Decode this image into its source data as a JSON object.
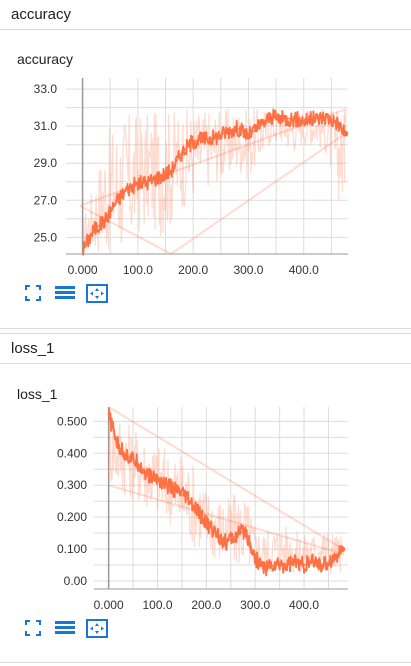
{
  "colors": {
    "series": "#ff7043",
    "grid": "#dddddd",
    "axis": "#999999",
    "icon": "#1976d2"
  },
  "icons": [
    "fit-domain-icon",
    "toggle-log-scale-icon",
    "reset-zoom-icon"
  ],
  "sections": [
    {
      "header": "accuracy"
    },
    {
      "header": "loss_1"
    }
  ],
  "chart_data": [
    {
      "type": "line",
      "title": "accuracy",
      "xlabel": "",
      "ylabel": "",
      "xlim": [
        -30,
        480
      ],
      "ylim": [
        24.1,
        33.6
      ],
      "xticks": [
        0,
        100,
        200,
        300,
        400
      ],
      "xtick_labels": [
        "0.000",
        "100.0",
        "200.0",
        "300.0",
        "400.0"
      ],
      "yticks": [
        25,
        27,
        29,
        31,
        33
      ],
      "ytick_labels": [
        "25.0",
        "27.0",
        "29.0",
        "31.0",
        "33.0"
      ],
      "grid": true,
      "smoothed_trend": {
        "x": [
          0,
          20,
          40,
          60,
          80,
          100,
          120,
          140,
          160,
          180,
          200,
          220,
          240,
          260,
          280,
          300,
          320,
          340,
          360,
          380,
          400,
          420,
          440,
          460,
          475
        ],
        "y": [
          24.3,
          25.4,
          25.9,
          26.9,
          27.6,
          27.9,
          28.0,
          28.3,
          28.6,
          29.6,
          30.2,
          30.3,
          30.4,
          30.7,
          30.9,
          30.5,
          31.0,
          31.5,
          31.4,
          31.4,
          31.3,
          31.4,
          31.5,
          31.2,
          30.6
        ]
      },
      "raw_band": {
        "x": [
          0,
          20,
          40,
          60,
          80,
          100,
          120,
          140,
          160,
          180,
          200,
          220,
          240,
          260,
          280,
          300,
          320,
          340,
          360,
          380,
          400,
          420,
          440,
          460,
          475
        ],
        "low": [
          24.1,
          24.1,
          24.1,
          24.1,
          24.1,
          25.0,
          25.5,
          25.0,
          25.5,
          26.5,
          27.0,
          27.5,
          28.0,
          28.0,
          28.5,
          28.0,
          29.0,
          30.0,
          30.0,
          29.5,
          30.0,
          30.0,
          29.5,
          27.0,
          27.0
        ],
        "high": [
          26.0,
          28.0,
          30.5,
          31.5,
          31.8,
          31.8,
          31.8,
          31.8,
          32.0,
          32.0,
          32.0,
          32.0,
          32.0,
          32.0,
          32.0,
          32.0,
          32.0,
          32.0,
          32.0,
          32.0,
          32.0,
          32.0,
          32.0,
          32.0,
          31.8
        ]
      },
      "outline": {
        "x": [
          -5,
          475,
          475,
          160,
          -5
        ],
        "y": [
          26.7,
          31.9,
          30.6,
          24.1,
          26.7
        ]
      }
    },
    {
      "type": "line",
      "title": "loss_1",
      "xlabel": "",
      "ylabel": "",
      "xlim": [
        -30,
        490
      ],
      "ylim": [
        -0.025,
        0.545
      ],
      "xticks": [
        0,
        100,
        200,
        300,
        400
      ],
      "xtick_labels": [
        "0.000",
        "100.0",
        "200.0",
        "300.0",
        "400.0"
      ],
      "yticks": [
        0,
        0.1,
        0.2,
        0.3,
        0.4,
        0.5
      ],
      "ytick_labels": [
        "0.00",
        "0.100",
        "0.200",
        "0.300",
        "0.400",
        "0.500"
      ],
      "grid": true,
      "smoothed_trend": {
        "x": [
          0,
          20,
          40,
          60,
          80,
          100,
          120,
          140,
          160,
          180,
          200,
          220,
          240,
          260,
          280,
          300,
          320,
          340,
          360,
          380,
          400,
          420,
          440,
          460,
          478
        ],
        "y": [
          0.52,
          0.42,
          0.39,
          0.37,
          0.33,
          0.32,
          0.3,
          0.28,
          0.26,
          0.22,
          0.18,
          0.15,
          0.12,
          0.14,
          0.16,
          0.07,
          0.04,
          0.05,
          0.05,
          0.06,
          0.05,
          0.06,
          0.05,
          0.07,
          0.1
        ]
      },
      "raw_band": {
        "x": [
          0,
          20,
          40,
          60,
          80,
          100,
          120,
          140,
          160,
          180,
          200,
          220,
          240,
          260,
          280,
          300,
          320,
          340,
          360,
          380,
          400,
          420,
          440,
          460,
          478
        ],
        "low": [
          0.3,
          0.28,
          0.26,
          0.24,
          0.22,
          0.2,
          0.18,
          0.15,
          0.12,
          0.1,
          0.08,
          0.06,
          0.04,
          0.04,
          0.04,
          0.02,
          0.02,
          0.02,
          0.02,
          0.02,
          0.02,
          0.02,
          0.02,
          0.02,
          0.03
        ],
        "high": [
          0.54,
          0.54,
          0.5,
          0.48,
          0.45,
          0.44,
          0.42,
          0.41,
          0.4,
          0.36,
          0.3,
          0.28,
          0.26,
          0.28,
          0.28,
          0.18,
          0.16,
          0.18,
          0.18,
          0.16,
          0.15,
          0.16,
          0.17,
          0.16,
          0.14
        ]
      },
      "outline": {
        "x": [
          0,
          480,
          480,
          0
        ],
        "y": [
          0.3,
          0.085,
          0.1,
          0.545
        ]
      }
    }
  ]
}
